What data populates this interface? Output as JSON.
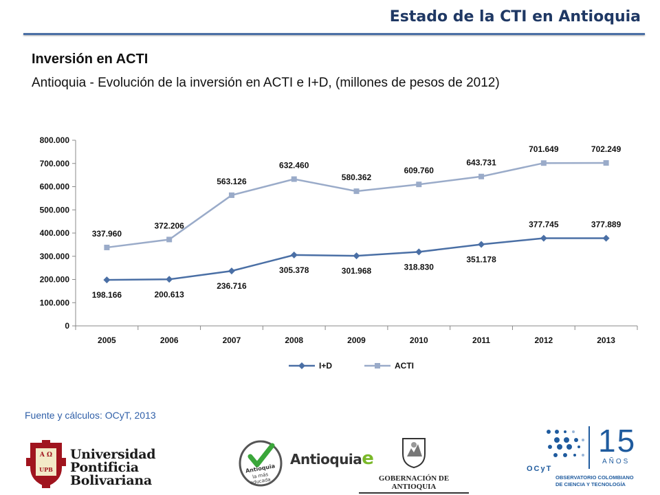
{
  "header": {
    "title": "Estado de la CTI en Antioquia"
  },
  "section": {
    "title": "Inversión en ACTI",
    "subtitle": "Antioquia - Evolución de la inversión en ACTI e I+D, (millones de pesos de 2012)"
  },
  "source": "Fuente y cálculos: OCyT, 2013",
  "colors": {
    "header_text": "#1f3864",
    "rule": "#4a6fa5",
    "id_series": "#4a6fa5",
    "acti_series": "#9aabc9",
    "source_text": "#2f5fa8"
  },
  "chart_data": {
    "type": "line",
    "categories": [
      "2005",
      "2006",
      "2007",
      "2008",
      "2009",
      "2010",
      "2011",
      "2012",
      "2013"
    ],
    "series": [
      {
        "name": "I+D",
        "marker": "diamond",
        "color": "#4a6fa5",
        "values": [
          198166,
          200613,
          236716,
          305378,
          301968,
          318830,
          351178,
          377745,
          377889
        ],
        "labels": [
          "198.166",
          "200.613",
          "236.716",
          "305.378",
          "301.968",
          "318.830",
          "351.178",
          "377.745",
          "377.889"
        ]
      },
      {
        "name": "ACTI",
        "marker": "square",
        "color": "#9aabc9",
        "values": [
          337960,
          372206,
          563126,
          632460,
          580362,
          609760,
          643731,
          701649,
          702249
        ],
        "labels": [
          "337.960",
          "372.206",
          "563.126",
          "632.460",
          "580.362",
          "609.760",
          "643.731",
          "701.649",
          "702.249"
        ]
      }
    ],
    "ylim": [
      0,
      800000
    ],
    "yticks": [
      0,
      100000,
      200000,
      300000,
      400000,
      500000,
      600000,
      700000,
      800000
    ],
    "ytick_labels": [
      "0",
      "100.000",
      "200.000",
      "300.000",
      "400.000",
      "500.000",
      "600.000",
      "700.000",
      "800.000"
    ],
    "grid": false,
    "legend": "bottom"
  },
  "logos": {
    "upb": {
      "line1": "Universidad",
      "line2": "Pontificia",
      "line3": "Bolivariana",
      "seal": "A Ω UPB"
    },
    "antioquia_badge": "Antioquia la más educada",
    "antioquia_e": "Antioquia",
    "gobernacion": "GOBERNACIÓN DE ANTIOQUIA",
    "ocyt": {
      "number": "15",
      "anos": "AÑOS",
      "acronym": "OCyT",
      "name1": "OBSERVATORIO COLOMBIANO",
      "name2": "DE CIENCIA Y TECNOLOGÍA"
    }
  }
}
